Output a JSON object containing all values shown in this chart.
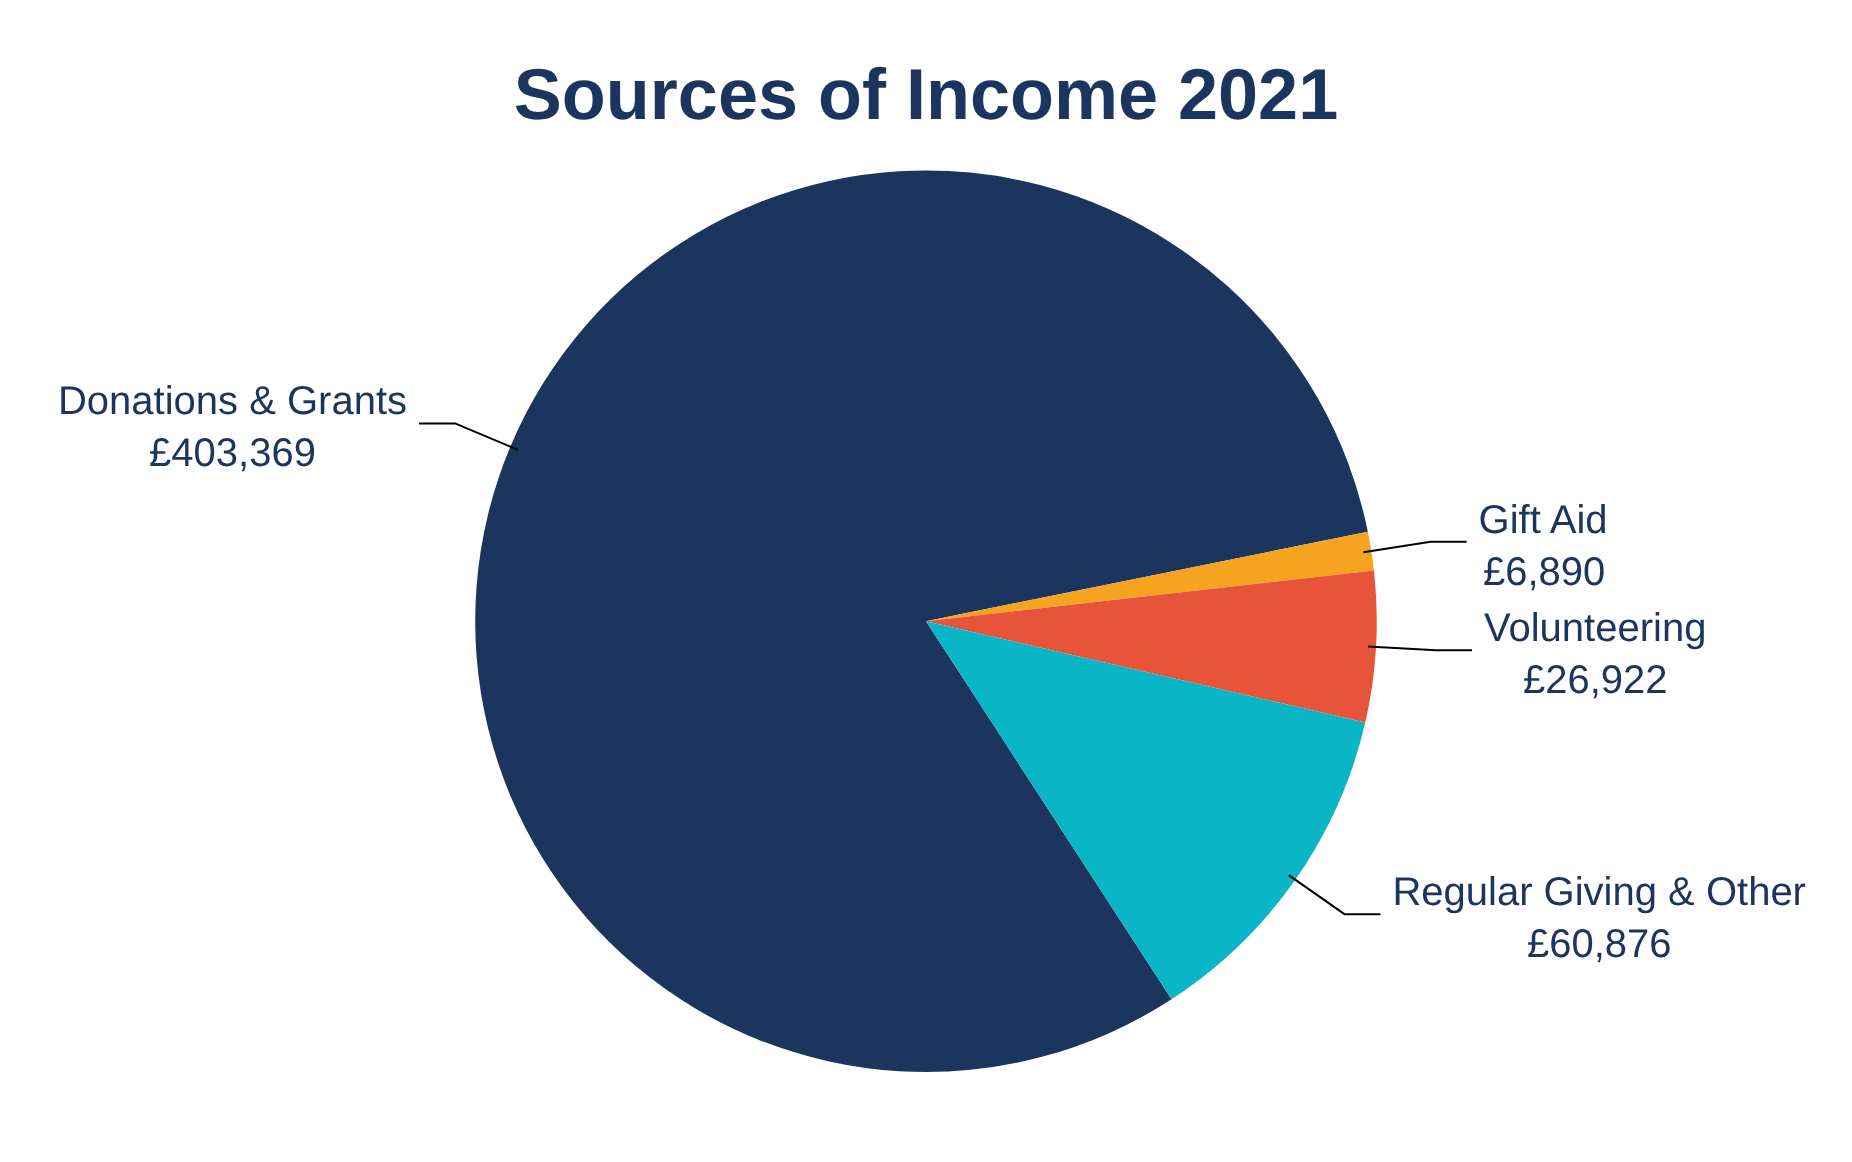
{
  "chart_data": {
    "type": "pie",
    "title": "Sources of Income 2021",
    "categories": [
      "Donations & Grants",
      "Gift Aid",
      "Volunteering",
      "Regular Giving & Other"
    ],
    "values": [
      403369,
      6890,
      26922,
      60876
    ],
    "colors": [
      "#1c355e",
      "#f6a31f",
      "#e8543a",
      "#0ab5c6"
    ],
    "value_labels": [
      "£403,369",
      "£6,890",
      "£26,922",
      "£60,876"
    ],
    "legend": false
  }
}
